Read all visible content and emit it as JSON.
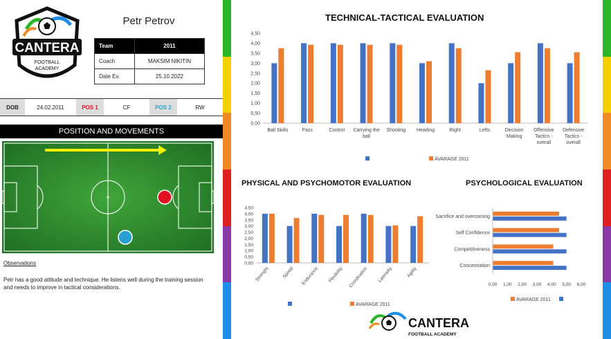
{
  "player": {
    "name": "Petr Petrov"
  },
  "logo": {
    "brand": "CANTERA",
    "sub": "FOOTBALL ACADEMY"
  },
  "info": {
    "team_label": "Team",
    "team_value": "2011",
    "coach_label": "Coach",
    "coach_value": "MAKSIM NIKITIN",
    "date_label": "Date Ev.",
    "date_value": "25.10.2022"
  },
  "dob": {
    "label": "DOB",
    "value": "24.02.2011",
    "pos1_label": "POS 1",
    "pos1_value": "CF",
    "pos2_label": "POS 2",
    "pos2_value": "RW"
  },
  "colors": {
    "pos1": "#e01020",
    "pos2": "#2aa0d0",
    "blue": "#4472c4",
    "orange": "#ed7d31",
    "stripes": [
      "#2bb52b",
      "#f5d000",
      "#f08a24",
      "#e02020",
      "#8a3aa8",
      "#1e8ee6"
    ]
  },
  "position_title": "POSITION AND MOVEMENTS",
  "observations": {
    "title": "Observations",
    "text": "Petr has a good attitude and technique. He listens well during the training session and needs to improve in tactical considerations."
  },
  "chart_data": [
    {
      "type": "bar",
      "title": "TECHNICAL-TACTICAL EVALUATION",
      "categories": [
        "Ball Skills",
        "Pass",
        "Control",
        "Carrying the ball",
        "Shooting",
        "Heading",
        "Right",
        "Lefts",
        "Decision Making",
        "Offensive Tactics - overall",
        "Defensive Tactics - overall"
      ],
      "category_lines": [
        [
          "Ball Skills"
        ],
        [
          "Pass"
        ],
        [
          "Control"
        ],
        [
          "Carrying the",
          "ball"
        ],
        [
          "Shooting"
        ],
        [
          "Heading"
        ],
        [
          "Right"
        ],
        [
          "Lefts"
        ],
        [
          "Decision",
          "Making"
        ],
        [
          "Offensive",
          "Tactics -",
          "overall"
        ],
        [
          "Defensive",
          "Tactics -",
          "overall"
        ]
      ],
      "series": [
        {
          "name": "",
          "values": [
            3.0,
            4.0,
            4.0,
            4.0,
            4.0,
            3.0,
            4.0,
            2.0,
            3.0,
            4.0,
            3.0
          ]
        },
        {
          "name": "AVARAGE 2011",
          "values": [
            3.75,
            3.92,
            3.92,
            3.92,
            3.92,
            3.1,
            3.75,
            2.65,
            3.55,
            3.75,
            3.55
          ]
        }
      ],
      "ylim": [
        0,
        4.5
      ],
      "yticks": [
        "0,00",
        "0,50",
        "1,00",
        "1,50",
        "2,00",
        "2,50",
        "3,00",
        "3,50",
        "4,00",
        "4,50"
      ],
      "legend": "bottom"
    },
    {
      "type": "bar",
      "title": "PHYSICAL AND PSYCHOMOTOR EVALUATION",
      "categories": [
        "Strenght",
        "Speed",
        "Endurance",
        "Flexibility",
        "Coordination",
        "Laterality",
        "Agility"
      ],
      "series": [
        {
          "name": "",
          "values": [
            4.0,
            3.0,
            4.0,
            3.0,
            4.0,
            3.0,
            3.0
          ]
        },
        {
          "name": "AVARAGE 2011",
          "values": [
            4.0,
            3.65,
            3.9,
            3.9,
            3.9,
            3.05,
            3.8
          ]
        }
      ],
      "ylim": [
        0,
        4.5
      ],
      "yticks": [
        "0,00",
        "0,50",
        "1,00",
        "1,50",
        "2,00",
        "2,50",
        "3,00",
        "3,50",
        "4,00",
        "4,50"
      ],
      "legend": "bottom"
    },
    {
      "type": "bar",
      "orientation": "horizontal",
      "title": "PSYCHOLOGICAL EVALUATION",
      "categories": [
        "Sacrifice and overcoming",
        "Self Confidence",
        "Competitiveness",
        "Concentration"
      ],
      "series": [
        {
          "name": "",
          "values": [
            5.0,
            5.0,
            5.0,
            5.0
          ]
        },
        {
          "name": "AVARAGE 2011",
          "values": [
            4.5,
            4.5,
            4.1,
            4.1
          ]
        }
      ],
      "xlim": [
        0,
        6
      ],
      "xticks": [
        "0,00",
        "1,00",
        "2,00",
        "3,00",
        "4,00",
        "5,00",
        "6,00"
      ],
      "legend": "bottom"
    }
  ]
}
